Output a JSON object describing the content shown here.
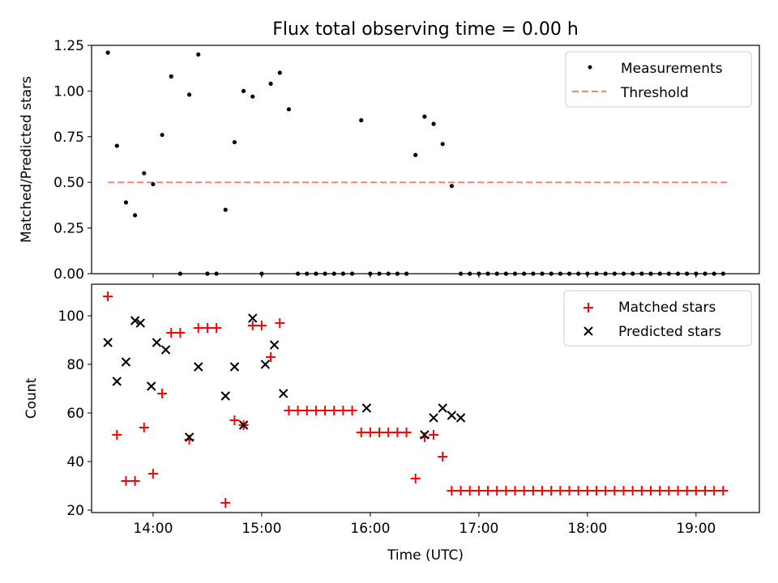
{
  "figure_title": "Flux total observing time = 0.00 h",
  "xlabel": "Time (UTC)",
  "x_ticks": [
    "14:00",
    "15:00",
    "16:00",
    "17:00",
    "18:00",
    "19:00"
  ],
  "colors": {
    "measurement": "#000000",
    "threshold": "#ff7f7f",
    "matched": "#ff0000",
    "predicted": "#000000"
  },
  "chart_data": [
    {
      "type": "scatter",
      "ylabel": "Matched/Predicted stars",
      "xlim": [
        "13:26",
        "19:35"
      ],
      "ylim": [
        0,
        1.25
      ],
      "y_ticks": [
        "0.00",
        "0.25",
        "0.50",
        "0.75",
        "1.00",
        "1.25"
      ],
      "legend_position": "top-right",
      "legend": [
        "Measurements",
        "Threshold"
      ],
      "threshold": {
        "y": 0.5,
        "x_range": [
          "13:35",
          "19:18"
        ]
      },
      "series": [
        {
          "name": "Measurements",
          "x": [
            "13:35",
            "13:40",
            "13:45",
            "13:50",
            "13:55",
            "14:00",
            "14:05",
            "14:10",
            "14:15",
            "14:20",
            "14:25",
            "14:30",
            "14:35",
            "14:40",
            "14:45",
            "14:50",
            "14:55",
            "15:00",
            "15:05",
            "15:10",
            "15:15",
            "15:20",
            "15:25",
            "15:30",
            "15:35",
            "15:40",
            "15:45",
            "15:50",
            "15:55",
            "16:00",
            "16:05",
            "16:10",
            "16:15",
            "16:20",
            "16:25",
            "16:30",
            "16:35",
            "16:40",
            "16:45",
            "16:50",
            "16:55",
            "17:00",
            "17:05",
            "17:10",
            "17:15",
            "17:20",
            "17:25",
            "17:30",
            "17:35",
            "17:40",
            "17:45",
            "17:50",
            "17:55",
            "18:00",
            "18:05",
            "18:10",
            "18:15",
            "18:20",
            "18:25",
            "18:30",
            "18:35",
            "18:40",
            "18:45",
            "18:50",
            "18:55",
            "19:00",
            "19:05",
            "19:10",
            "19:15"
          ],
          "y": [
            1.21,
            0.7,
            0.39,
            0.32,
            0.55,
            0.49,
            0.76,
            1.08,
            0.0,
            0.98,
            1.2,
            0.0,
            0.0,
            0.35,
            0.72,
            1.0,
            0.97,
            0.0,
            1.04,
            1.1,
            0.9,
            0.0,
            0.0,
            0.0,
            0.0,
            0.0,
            0.0,
            0.0,
            0.84,
            0.0,
            0.0,
            0.0,
            0.0,
            0.0,
            0.65,
            0.86,
            0.82,
            0.71,
            0.48,
            0.0,
            0.0,
            0.0,
            0.0,
            0.0,
            0.0,
            0.0,
            0.0,
            0.0,
            0.0,
            0.0,
            0.0,
            0.0,
            0.0,
            0.0,
            0.0,
            0.0,
            0.0,
            0.0,
            0.0,
            0.0,
            0.0,
            0.0,
            0.0,
            0.0,
            0.0,
            0.0,
            0.0,
            0.0,
            0.0
          ]
        }
      ]
    },
    {
      "type": "scatter",
      "ylabel": "Count",
      "xlim": [
        "13:26",
        "19:35"
      ],
      "ylim": [
        19,
        113
      ],
      "y_ticks": [
        "20",
        "40",
        "60",
        "80",
        "100"
      ],
      "legend_position": "top-right",
      "series": [
        {
          "name": "Matched stars",
          "x": [
            "13:35",
            "13:40",
            "13:45",
            "13:50",
            "13:55",
            "14:00",
            "14:05",
            "14:10",
            "14:15",
            "14:20",
            "14:25",
            "14:30",
            "14:35",
            "14:40",
            "14:45",
            "14:50",
            "14:55",
            "15:00",
            "15:05",
            "15:10",
            "15:15",
            "15:20",
            "15:25",
            "15:30",
            "15:35",
            "15:40",
            "15:45",
            "15:50",
            "15:55",
            "16:00",
            "16:05",
            "16:10",
            "16:15",
            "16:20",
            "16:25",
            "16:30",
            "16:35",
            "16:40",
            "16:45",
            "16:50",
            "16:55",
            "17:00",
            "17:05",
            "17:10",
            "17:15",
            "17:20",
            "17:25",
            "17:30",
            "17:35",
            "17:40",
            "17:45",
            "17:50",
            "17:55",
            "18:00",
            "18:05",
            "18:10",
            "18:15",
            "18:20",
            "18:25",
            "18:30",
            "18:35",
            "18:40",
            "18:45",
            "18:50",
            "18:55",
            "19:00",
            "19:05",
            "19:10",
            "19:15"
          ],
          "y": [
            108,
            51,
            32,
            32,
            54,
            35,
            68,
            93,
            93,
            49,
            95,
            95,
            95,
            23,
            57,
            55,
            96,
            96,
            83,
            97,
            61,
            61,
            61,
            61,
            61,
            61,
            61,
            61,
            52,
            52,
            52,
            52,
            52,
            52,
            33,
            50,
            51,
            42,
            28,
            28,
            28,
            28,
            28,
            28,
            28,
            28,
            28,
            28,
            28,
            28,
            28,
            28,
            28,
            28,
            28,
            28,
            28,
            28,
            28,
            28,
            28,
            28,
            28,
            28,
            28,
            28,
            28,
            28,
            28
          ]
        },
        {
          "name": "Predicted stars",
          "x": [
            "13:35",
            "13:40",
            "13:45",
            "13:50",
            "13:53",
            "13:59",
            "14:02",
            "14:07",
            "14:20",
            "14:25",
            "14:40",
            "14:45",
            "14:50",
            "14:55",
            "15:02",
            "15:07",
            "15:12",
            "15:58",
            "16:30",
            "16:35",
            "16:40",
            "16:45",
            "16:50"
          ],
          "y": [
            89,
            73,
            81,
            98,
            97,
            71,
            89,
            86,
            50,
            79,
            67,
            79,
            55,
            99,
            80,
            88,
            68,
            62,
            51,
            58,
            62,
            59,
            58
          ]
        }
      ]
    }
  ]
}
